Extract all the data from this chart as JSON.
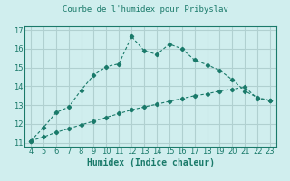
{
  "title": "Courbe de l'humidex pour Pribyslav",
  "xlabel": "Humidex (Indice chaleur)",
  "background_color": "#d0eeee",
  "grid_color": "#b0d0d0",
  "line_color": "#1a7a6a",
  "x_upper_line": [
    4,
    5,
    6,
    7,
    8,
    9,
    10,
    11,
    12,
    13,
    14,
    15,
    16,
    17,
    18,
    19,
    20,
    21,
    22,
    23
  ],
  "y_upper_line": [
    11.1,
    11.8,
    12.6,
    12.9,
    13.8,
    14.6,
    15.05,
    15.2,
    16.65,
    15.9,
    15.7,
    16.25,
    16.0,
    15.4,
    15.15,
    14.85,
    14.35,
    13.75,
    13.4,
    13.25
  ],
  "x_lower_line": [
    4,
    5,
    6,
    7,
    8,
    9,
    10,
    11,
    12,
    13,
    14,
    15,
    16,
    17,
    18,
    19,
    20,
    21,
    22,
    23
  ],
  "y_lower_line": [
    11.1,
    11.3,
    11.55,
    11.75,
    11.95,
    12.15,
    12.35,
    12.55,
    12.75,
    12.9,
    13.05,
    13.2,
    13.35,
    13.5,
    13.6,
    13.75,
    13.85,
    13.95,
    13.35,
    13.25
  ],
  "xlim": [
    3.5,
    23.5
  ],
  "ylim": [
    10.8,
    17.2
  ],
  "yticks": [
    11,
    12,
    13,
    14,
    15,
    16,
    17
  ],
  "xticks": [
    4,
    5,
    6,
    7,
    8,
    9,
    10,
    11,
    12,
    13,
    14,
    15,
    16,
    17,
    18,
    19,
    20,
    21,
    22,
    23
  ]
}
